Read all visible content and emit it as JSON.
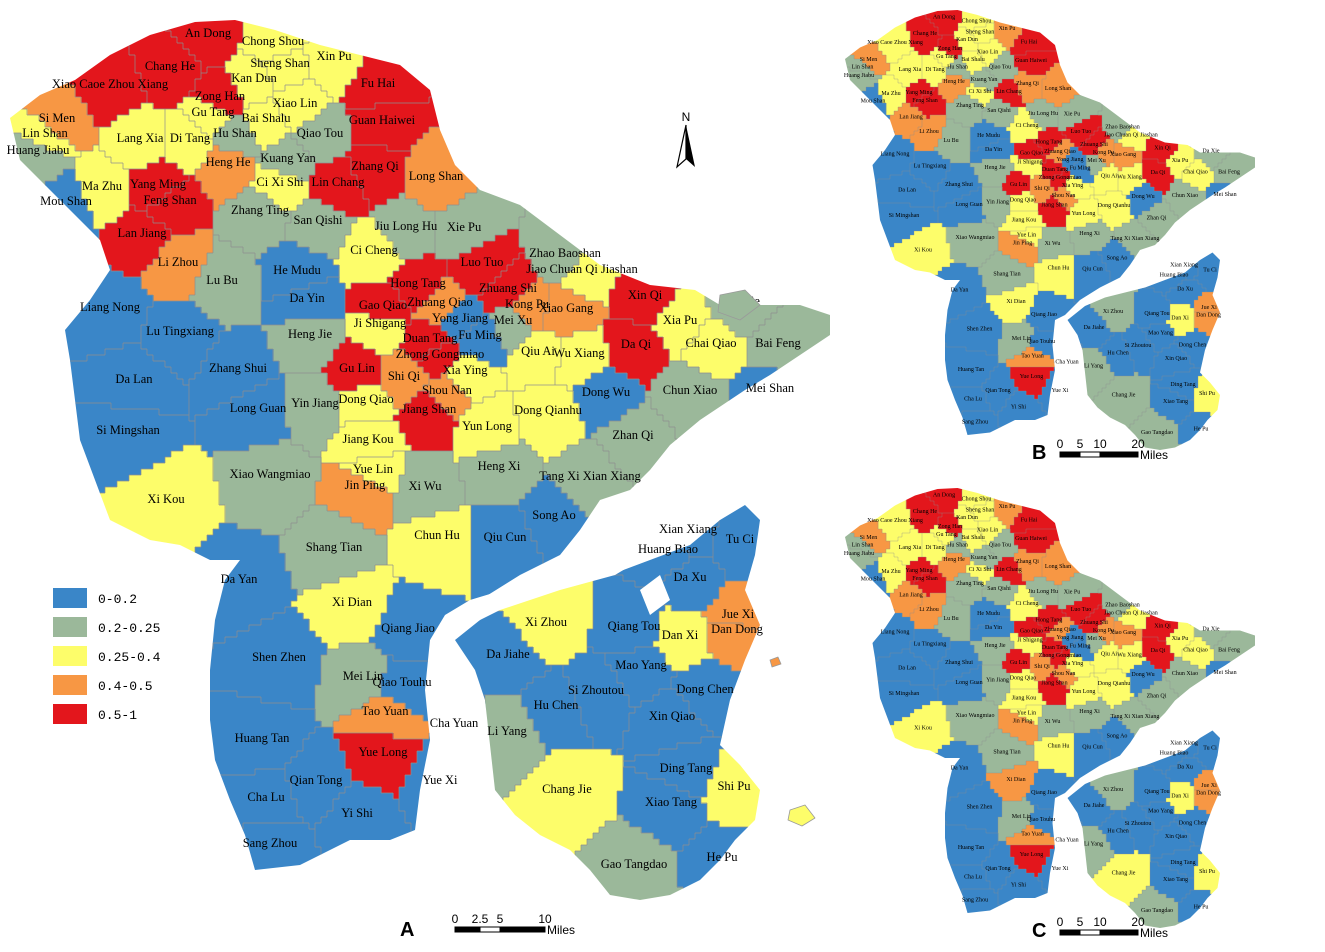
{
  "legend": {
    "items": [
      {
        "label": "0-0.2",
        "color": "#3a86c8"
      },
      {
        "label": "0.2-0.25",
        "color": "#9bb89a"
      },
      {
        "label": "0.25-0.4",
        "color": "#fdfd6a"
      },
      {
        "label": "0.4-0.5",
        "color": "#f79744"
      },
      {
        "label": "0.5-1",
        "color": "#e3161c"
      }
    ]
  },
  "panels": [
    {
      "letter": "A",
      "scale_ticks": [
        "0",
        "2.5",
        "5",
        "10"
      ],
      "scale_unit": "Miles"
    },
    {
      "letter": "B",
      "scale_ticks": [
        "0",
        "5",
        "10",
        "20"
      ],
      "scale_unit": "Miles"
    },
    {
      "letter": "C",
      "scale_ticks": [
        "0",
        "5",
        "10",
        "20"
      ],
      "scale_unit": "Miles"
    }
  ],
  "north_label": "N",
  "regions": [
    {
      "name": "An Dong",
      "a": 4,
      "b": 4,
      "c": 4
    },
    {
      "name": "Chong Shou",
      "a": 2,
      "b": 2,
      "c": 2
    },
    {
      "name": "Xin Pu",
      "a": 2,
      "b": 3,
      "c": 3
    },
    {
      "name": "Chang He",
      "a": 4,
      "b": 4,
      "c": 4
    },
    {
      "name": "Xiao Caoe Zhou Xiang",
      "a": 4,
      "b": 2,
      "c": 2
    },
    {
      "name": "Sheng Shan",
      "a": 2,
      "b": 2,
      "c": 2
    },
    {
      "name": "Kan Dun",
      "a": 2,
      "b": 2,
      "c": 2
    },
    {
      "name": "Fu Hai",
      "a": 4,
      "b": 4,
      "c": 4
    },
    {
      "name": "Zong Han",
      "a": 4,
      "b": 4,
      "c": 4
    },
    {
      "name": "Gu Tang",
      "a": 2,
      "b": 2,
      "c": 2
    },
    {
      "name": "Xiao Lin",
      "a": 2,
      "b": 2,
      "c": 2
    },
    {
      "name": "Si Men",
      "a": 3,
      "b": 3,
      "c": 3
    },
    {
      "name": "Lin Shan",
      "a": 2,
      "b": 1,
      "c": 1
    },
    {
      "name": "Huang Jiabu",
      "a": 1,
      "b": 1,
      "c": 1
    },
    {
      "name": "Lang Xia",
      "a": 2,
      "b": 2,
      "c": 2
    },
    {
      "name": "Di Tang",
      "a": 2,
      "b": 2,
      "c": 2
    },
    {
      "name": "Bai Shalu",
      "a": 2,
      "b": 2,
      "c": 2
    },
    {
      "name": "Hu Shan",
      "a": 1,
      "b": 1,
      "c": 1
    },
    {
      "name": "Qiao Tou",
      "a": 1,
      "b": 1,
      "c": 1
    },
    {
      "name": "Guan Haiwei",
      "a": 4,
      "b": 4,
      "c": 4
    },
    {
      "name": "Heng He",
      "a": 3,
      "b": 3,
      "c": 3
    },
    {
      "name": "Kuang Yan",
      "a": 1,
      "b": 1,
      "c": 1
    },
    {
      "name": "Ci Xi Shi",
      "a": 2,
      "b": 2,
      "c": 2
    },
    {
      "name": "Lin Chang",
      "a": 4,
      "b": 4,
      "c": 4
    },
    {
      "name": "Zhang Qi",
      "a": 4,
      "b": 3,
      "c": 3
    },
    {
      "name": "Ma Zhu",
      "a": 2,
      "b": 2,
      "c": 2
    },
    {
      "name": "Yang Ming",
      "a": 4,
      "b": 4,
      "c": 4
    },
    {
      "name": "Mou Shan",
      "a": 0,
      "b": 0,
      "c": 0
    },
    {
      "name": "Feng Shan",
      "a": 4,
      "b": 4,
      "c": 4
    },
    {
      "name": "Long Shan",
      "a": 3,
      "b": 3,
      "c": 3
    },
    {
      "name": "Zhang Ting",
      "a": 1,
      "b": 1,
      "c": 1
    },
    {
      "name": "San Qishi",
      "a": 1,
      "b": 1,
      "c": 1
    },
    {
      "name": "Lan Jiang",
      "a": 4,
      "b": 3,
      "c": 3
    },
    {
      "name": "Jiu Long Hu",
      "a": 1,
      "b": 1,
      "c": 1
    },
    {
      "name": "Xie Pu",
      "a": 1,
      "b": 1,
      "c": 1
    },
    {
      "name": "Ci Cheng",
      "a": 2,
      "b": 2,
      "c": 2
    },
    {
      "name": "Li Zhou",
      "a": 3,
      "b": 3,
      "c": 3
    },
    {
      "name": "Luo Tuo",
      "a": 4,
      "b": 4,
      "c": 4
    },
    {
      "name": "Zhao Baoshan",
      "a": 1,
      "b": 1,
      "c": 1
    },
    {
      "name": "Jiao Chuan Qi Jiashan",
      "a": 2,
      "b": 2,
      "c": 2
    },
    {
      "name": "He Mudu",
      "a": 0,
      "b": 0,
      "c": 0
    },
    {
      "name": "Hong Tang",
      "a": 4,
      "b": 4,
      "c": 4
    },
    {
      "name": "Zhuang Shi",
      "a": 4,
      "b": 4,
      "c": 4
    },
    {
      "name": "Lu Bu",
      "a": 1,
      "b": 1,
      "c": 1
    },
    {
      "name": "Da Yin",
      "a": 0,
      "b": 0,
      "c": 0
    },
    {
      "name": "Gao Qiao",
      "a": 4,
      "b": 4,
      "c": 4
    },
    {
      "name": "Zhuang Qiao",
      "a": 3,
      "b": 3,
      "c": 3
    },
    {
      "name": "Kong Pu",
      "a": 3,
      "b": 3,
      "c": 3
    },
    {
      "name": "Xin Qi",
      "a": 4,
      "b": 4,
      "c": 4
    },
    {
      "name": "Da Xie",
      "a": 1,
      "b": 1,
      "c": 1
    },
    {
      "name": "Liang Nong",
      "a": 0,
      "b": 0,
      "c": 0
    },
    {
      "name": "Xiao Gang",
      "a": 3,
      "b": 3,
      "c": 3
    },
    {
      "name": "Yong Jiang",
      "a": 0,
      "b": 0,
      "c": 0
    },
    {
      "name": "Mei Xu",
      "a": 1,
      "b": 1,
      "c": 1
    },
    {
      "name": "Xia Pu",
      "a": 2,
      "b": 2,
      "c": 2
    },
    {
      "name": "Ji Shigang",
      "a": 2,
      "b": 2,
      "c": 2
    },
    {
      "name": "Lu Tingxiang",
      "a": 0,
      "b": 0,
      "c": 0
    },
    {
      "name": "Heng Jie",
      "a": 1,
      "b": 1,
      "c": 1
    },
    {
      "name": "Fu Ming",
      "a": 0,
      "b": 0,
      "c": 0
    },
    {
      "name": "Duan Tang",
      "a": 4,
      "b": 4,
      "c": 4
    },
    {
      "name": "Da Qi",
      "a": 4,
      "b": 4,
      "c": 4
    },
    {
      "name": "Chai Qiao",
      "a": 2,
      "b": 2,
      "c": 2
    },
    {
      "name": "Bai Feng",
      "a": 1,
      "b": 1,
      "c": 1
    },
    {
      "name": "Zhong Gongmiao",
      "a": 4,
      "b": 4,
      "c": 4
    },
    {
      "name": "Qiu Ai",
      "a": 2,
      "b": 2,
      "c": 2
    },
    {
      "name": "Wu Xiang",
      "a": 2,
      "b": 2,
      "c": 2
    },
    {
      "name": "Zhang Shui",
      "a": 0,
      "b": 0,
      "c": 0
    },
    {
      "name": "Da Lan",
      "a": 0,
      "b": 0,
      "c": 0
    },
    {
      "name": "Xia Ying",
      "a": 2,
      "b": 2,
      "c": 2
    },
    {
      "name": "Gu Lin",
      "a": 4,
      "b": 4,
      "c": 4
    },
    {
      "name": "Shi Qi",
      "a": 3,
      "b": 3,
      "c": 3
    },
    {
      "name": "Shou Nan",
      "a": 3,
      "b": 3,
      "c": 3
    },
    {
      "name": "Dong Wu",
      "a": 0,
      "b": 0,
      "c": 0
    },
    {
      "name": "Chun Xiao",
      "a": 1,
      "b": 1,
      "c": 1
    },
    {
      "name": "Mei Shan",
      "a": 0,
      "b": 0,
      "c": 0
    },
    {
      "name": "Long Guan",
      "a": 0,
      "b": 0,
      "c": 0
    },
    {
      "name": "Yin Jiang",
      "a": 1,
      "b": 1,
      "c": 1
    },
    {
      "name": "Dong Qiao",
      "a": 2,
      "b": 2,
      "c": 2
    },
    {
      "name": "Jiang Shan",
      "a": 4,
      "b": 4,
      "c": 4
    },
    {
      "name": "Dong Qianhu",
      "a": 2,
      "b": 2,
      "c": 2
    },
    {
      "name": "Si Mingshan",
      "a": 0,
      "b": 0,
      "c": 0
    },
    {
      "name": "Yun Long",
      "a": 2,
      "b": 2,
      "c": 2
    },
    {
      "name": "Zhan Qi",
      "a": 1,
      "b": 1,
      "c": 1
    },
    {
      "name": "Jiang Kou",
      "a": 2,
      "b": 2,
      "c": 2
    },
    {
      "name": "Heng Xi",
      "a": 1,
      "b": 1,
      "c": 1
    },
    {
      "name": "Yue Lin",
      "a": 2,
      "b": 2,
      "c": 2
    },
    {
      "name": "Jin Ping",
      "a": 3,
      "b": 3,
      "c": 3
    },
    {
      "name": "Tang Xi Xian Xiang",
      "a": 1,
      "b": 1,
      "c": 1
    },
    {
      "name": "Xiao Wangmiao",
      "a": 1,
      "b": 1,
      "c": 1
    },
    {
      "name": "Xi Wu",
      "a": 1,
      "b": 1,
      "c": 1
    },
    {
      "name": "Xi Kou",
      "a": 2,
      "b": 2,
      "c": 2
    },
    {
      "name": "Chun Hu",
      "a": 2,
      "b": 2,
      "c": 2
    },
    {
      "name": "Song Ao",
      "a": 0,
      "b": 0,
      "c": 0
    },
    {
      "name": "Qiu Cun",
      "a": 0,
      "b": 0,
      "c": 0
    },
    {
      "name": "Xian Xiang",
      "a": 0,
      "b": 0,
      "c": 0
    },
    {
      "name": "Tu Ci",
      "a": 0,
      "b": 0,
      "c": 0
    },
    {
      "name": "Shang Tian",
      "a": 1,
      "b": 1,
      "c": 1
    },
    {
      "name": "Huang Biao",
      "a": 0,
      "b": 0,
      "c": 0
    },
    {
      "name": "Da Xu",
      "a": 0,
      "b": 0,
      "c": 0
    },
    {
      "name": "Da Yan",
      "a": 0,
      "b": 0,
      "c": 0
    },
    {
      "name": "Xi Dian",
      "a": 2,
      "b": 2,
      "c": 3
    },
    {
      "name": "Xi Zhou",
      "a": 2,
      "b": 1,
      "c": 1
    },
    {
      "name": "Jue Xi",
      "a": 3,
      "b": 3,
      "c": 3
    },
    {
      "name": "Dan Dong",
      "a": 3,
      "b": 3,
      "c": 3
    },
    {
      "name": "Qiang Tou",
      "a": 0,
      "b": 0,
      "c": 0
    },
    {
      "name": "Dan Xi",
      "a": 2,
      "b": 2,
      "c": 2
    },
    {
      "name": "Qiang Jiao",
      "a": 0,
      "b": 0,
      "c": 0
    },
    {
      "name": "Shen Zhen",
      "a": 0,
      "b": 0,
      "c": 0
    },
    {
      "name": "Da Jiahe",
      "a": 0,
      "b": 0,
      "c": 0
    },
    {
      "name": "Mao Yang",
      "a": 0,
      "b": 0,
      "c": 0
    },
    {
      "name": "Mei Lin",
      "a": 1,
      "b": 1,
      "c": 1
    },
    {
      "name": "Qiao Touhu",
      "a": 0,
      "b": 0,
      "c": 0
    },
    {
      "name": "Si Zhoutou",
      "a": 0,
      "b": 0,
      "c": 0
    },
    {
      "name": "Dong Chen",
      "a": 0,
      "b": 0,
      "c": 0
    },
    {
      "name": "Tao Yuan",
      "a": 3,
      "b": 3,
      "c": 3
    },
    {
      "name": "Hu Chen",
      "a": 0,
      "b": 0,
      "c": 0
    },
    {
      "name": "Cha Yuan",
      "a": 0,
      "b": 0,
      "c": 0
    },
    {
      "name": "Xin Qiao",
      "a": 0,
      "b": 0,
      "c": 0
    },
    {
      "name": "Li Yang",
      "a": 1,
      "b": 1,
      "c": 1
    },
    {
      "name": "Huang Tan",
      "a": 0,
      "b": 0,
      "c": 0
    },
    {
      "name": "Yue Long",
      "a": 4,
      "b": 4,
      "c": 4
    },
    {
      "name": "Qian Tong",
      "a": 0,
      "b": 0,
      "c": 0
    },
    {
      "name": "Yue Xi",
      "a": 0,
      "b": 0,
      "c": 0
    },
    {
      "name": "Ding Tang",
      "a": 0,
      "b": 0,
      "c": 0
    },
    {
      "name": "Chang Jie",
      "a": 2,
      "b": 1,
      "c": 2
    },
    {
      "name": "Xiao Tang",
      "a": 0,
      "b": 0,
      "c": 0
    },
    {
      "name": "Shi Pu",
      "a": 2,
      "b": 2,
      "c": 2
    },
    {
      "name": "Cha Lu",
      "a": 0,
      "b": 0,
      "c": 0
    },
    {
      "name": "Yi Shi",
      "a": 0,
      "b": 0,
      "c": 0
    },
    {
      "name": "Sang Zhou",
      "a": 0,
      "b": 0,
      "c": 0
    },
    {
      "name": "Gao Tangdao",
      "a": 1,
      "b": 1,
      "c": 1
    },
    {
      "name": "He Pu",
      "a": 0,
      "b": 0,
      "c": 0
    }
  ]
}
